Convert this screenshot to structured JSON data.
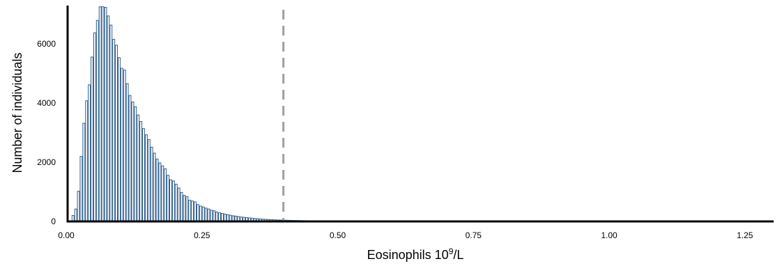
{
  "chart_data": {
    "type": "bar",
    "subtype": "histogram",
    "xlabel_main": "Eosinophils 10",
    "xlabel_sup": "9",
    "xlabel_tail": "/L",
    "ylabel": "Number of individuals",
    "xlim": [
      0,
      1.3
    ],
    "ylim": [
      0,
      7300
    ],
    "x_ticks": [
      0.0,
      0.25,
      0.5,
      0.75,
      1.0,
      1.25
    ],
    "x_tick_labels": [
      "0.00",
      "0.25",
      "0.50",
      "0.75",
      "1.00",
      "1.25"
    ],
    "y_ticks": [
      0,
      2000,
      4000,
      6000
    ],
    "y_tick_labels": [
      "0",
      "2000",
      "4000",
      "6000"
    ],
    "bin_width": 0.005,
    "bin_start": 0.0,
    "grid": false,
    "threshold_line": {
      "x": 0.4,
      "style": "dashed",
      "color": "#a0a0a0"
    },
    "bar_color": "#2f5d8c",
    "values": [
      0,
      10,
      200,
      420,
      1020,
      2200,
      3320,
      4080,
      4620,
      5560,
      6380,
      6800,
      7260,
      7260,
      7240,
      6950,
      6640,
      6160,
      5960,
      5540,
      5180,
      5120,
      4660,
      4260,
      4040,
      3880,
      3600,
      3380,
      3140,
      2930,
      2770,
      2510,
      2310,
      2110,
      1980,
      1880,
      1780,
      1560,
      1410,
      1370,
      1260,
      1130,
      980,
      880,
      840,
      720,
      690,
      660,
      570,
      520,
      490,
      450,
      420,
      380,
      360,
      320,
      290,
      270,
      250,
      230,
      210,
      190,
      180,
      165,
      150,
      140,
      130,
      120,
      110,
      100,
      92,
      85,
      78,
      72,
      66,
      60,
      56,
      52,
      48,
      45,
      42,
      39,
      36,
      34,
      32,
      30,
      28,
      26,
      25,
      23,
      22,
      21,
      20,
      19,
      18,
      17,
      16,
      15,
      14,
      13,
      12,
      11,
      10,
      9,
      8,
      8,
      7,
      6,
      6,
      5,
      5,
      4,
      4,
      3,
      3,
      3,
      2,
      2,
      2,
      2,
      2,
      1,
      1,
      1,
      1,
      1,
      1,
      1,
      1,
      1,
      1,
      1,
      1,
      1,
      1,
      1,
      1,
      1,
      1,
      1,
      1,
      1,
      1,
      1,
      1,
      1,
      1,
      1,
      1,
      1,
      1,
      1,
      1
    ]
  }
}
